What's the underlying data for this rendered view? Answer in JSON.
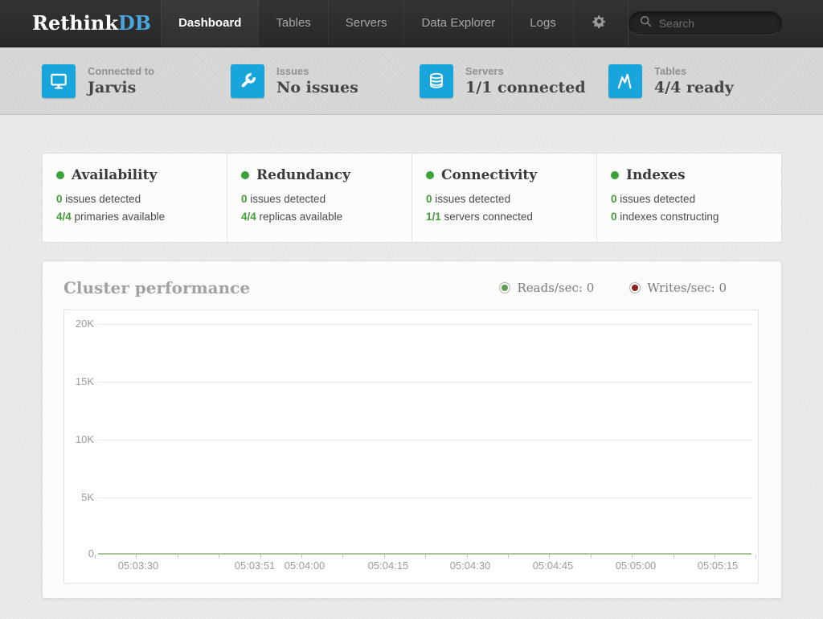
{
  "nav": {
    "logo_part1": "Rethink",
    "logo_part2": "DB",
    "items": [
      {
        "label": "Dashboard",
        "active": true
      },
      {
        "label": "Tables",
        "active": false
      },
      {
        "label": "Servers",
        "active": false
      },
      {
        "label": "Data Explorer",
        "active": false
      },
      {
        "label": "Logs",
        "active": false
      }
    ],
    "search": {
      "placeholder": "Search"
    }
  },
  "status_bar": {
    "items": [
      {
        "icon": "monitor-icon",
        "label": "Connected to",
        "value": "Jarvis"
      },
      {
        "icon": "wrench-icon",
        "label": "Issues",
        "value": "No issues"
      },
      {
        "icon": "database-icon",
        "label": "Servers",
        "value": "1/1 connected"
      },
      {
        "icon": "pulse-icon",
        "label": "Tables",
        "value": "4/4 ready"
      }
    ],
    "icon_color": "#18a5dc"
  },
  "panels": [
    {
      "title": "Availability",
      "stats": [
        {
          "value": "0",
          "text": " issues detected"
        },
        {
          "value": "4/4",
          "text": " primaries available"
        }
      ]
    },
    {
      "title": "Redundancy",
      "stats": [
        {
          "value": "0",
          "text": " issues detected"
        },
        {
          "value": "4/4",
          "text": " replicas available"
        }
      ]
    },
    {
      "title": "Connectivity",
      "stats": [
        {
          "value": "0",
          "text": " issues detected"
        },
        {
          "value": "1/1",
          "text": " servers connected"
        }
      ]
    },
    {
      "title": "Indexes",
      "stats": [
        {
          "value": "0",
          "text": " issues detected"
        },
        {
          "value": "0",
          "text": " indexes constructing"
        }
      ]
    }
  ],
  "panel_status_color": "#3ba23b",
  "performance": {
    "title": "Cluster performance",
    "legend": [
      {
        "label": "Reads/sec: 0",
        "color": "#5b9e51"
      },
      {
        "label": "Writes/sec: 0",
        "color": "#8e2421"
      }
    ]
  },
  "chart_data": {
    "type": "line",
    "title": "Cluster performance",
    "xlabel": "",
    "ylabel": "",
    "ylim": [
      0,
      20000
    ],
    "y_tick_labels": [
      "20K",
      "15K",
      "10K",
      "5K",
      "0"
    ],
    "x_tick_labels": [
      "05:03:30",
      "05:03:51",
      "05:04:00",
      "05:04:15",
      "05:04:30",
      "05:04:45",
      "05:05:00",
      "05:05:15"
    ],
    "grid": "horizontal",
    "legend_position": "top-right",
    "series": [
      {
        "name": "Reads/sec",
        "color": "#5b9e51",
        "values": [
          0,
          0,
          0,
          0,
          0,
          0,
          0,
          0
        ]
      },
      {
        "name": "Writes/sec",
        "color": "#8e2421",
        "values": [
          0,
          0,
          0,
          0,
          0,
          0,
          0,
          0
        ]
      }
    ]
  }
}
